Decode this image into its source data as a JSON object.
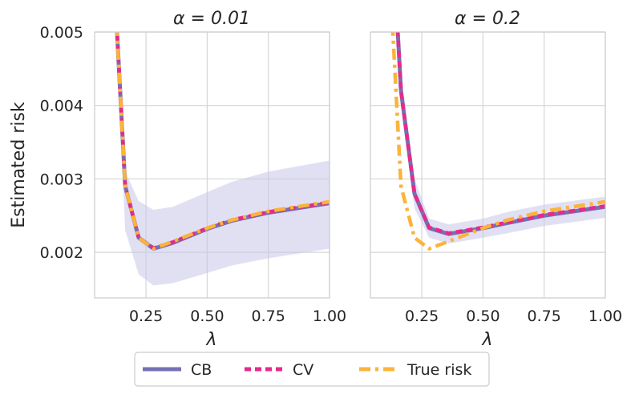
{
  "chart_data": {
    "type": "line",
    "ylabel": "Estimated risk",
    "yticks": [
      0.002,
      0.003,
      0.004,
      0.005
    ],
    "ytick_labels": [
      "0.002",
      "0.003",
      "0.004",
      "0.005"
    ],
    "xticks": [
      0.25,
      0.5,
      0.75,
      1.0
    ],
    "xtick_labels": [
      "0.25",
      "0.50",
      "0.75",
      "1.00"
    ],
    "xlim": [
      0.04,
      1.0
    ],
    "ylim": [
      0.00138,
      0.005
    ],
    "grid": true,
    "legend": {
      "placement": "bottom-center",
      "entries": [
        {
          "name": "CB",
          "color": "#7570b3",
          "style": "solid"
        },
        {
          "name": "CV",
          "color": "#e7298a",
          "style": "dashed"
        },
        {
          "name": "True risk",
          "color": "#fbb33a",
          "style": "dashdot"
        }
      ]
    },
    "band_color": "#c9c7ea",
    "panels": [
      {
        "title": "α = 0.01",
        "xlabel": "λ",
        "x": [
          0.13,
          0.165,
          0.22,
          0.28,
          0.36,
          0.5,
          0.6,
          0.75,
          1.0
        ],
        "series": [
          {
            "name": "CB",
            "values": [
              0.0051,
              0.0029,
              0.0022,
              0.00205,
              0.00213,
              0.00232,
              0.00243,
              0.00254,
              0.00267
            ]
          },
          {
            "name": "CV",
            "values": [
              0.0051,
              0.0029,
              0.0022,
              0.00206,
              0.00214,
              0.00233,
              0.00244,
              0.00255,
              0.00268
            ]
          },
          {
            "name": "True risk",
            "values": [
              0.0051,
              0.0029,
              0.0022,
              0.00205,
              0.00215,
              0.00233,
              0.00244,
              0.00256,
              0.00269
            ]
          }
        ],
        "band_lower": [
          0.0048,
          0.0023,
          0.0017,
          0.00155,
          0.00158,
          0.00172,
          0.00182,
          0.00192,
          0.00205
        ],
        "band_upper": [
          0.0052,
          0.0031,
          0.0027,
          0.00258,
          0.00262,
          0.00282,
          0.00296,
          0.0031,
          0.00325
        ]
      },
      {
        "title": "α = 0.2",
        "xlabel": "λ",
        "x": [
          0.13,
          0.165,
          0.22,
          0.28,
          0.36,
          0.5,
          0.6,
          0.75,
          1.0
        ],
        "series": [
          {
            "name": "CB",
            "values": [
              0.0063,
              0.0042,
              0.0028,
              0.00233,
              0.00225,
              0.00233,
              0.0024,
              0.0025,
              0.00262
            ]
          },
          {
            "name": "CV",
            "values": [
              0.0063,
              0.0042,
              0.0028,
              0.00234,
              0.00226,
              0.00234,
              0.00241,
              0.00251,
              0.00263
            ]
          },
          {
            "name": "True risk",
            "values": [
              0.0051,
              0.0029,
              0.0022,
              0.00205,
              0.00215,
              0.00233,
              0.00244,
              0.00256,
              0.00269
            ]
          }
        ],
        "band_lower": [
          0.0061,
          0.004,
          0.0026,
          0.0022,
          0.00212,
          0.0022,
          0.00226,
          0.00236,
          0.00247
        ],
        "band_upper": [
          0.0065,
          0.0044,
          0.003,
          0.00246,
          0.00238,
          0.00246,
          0.00255,
          0.00265,
          0.00276
        ]
      }
    ]
  }
}
